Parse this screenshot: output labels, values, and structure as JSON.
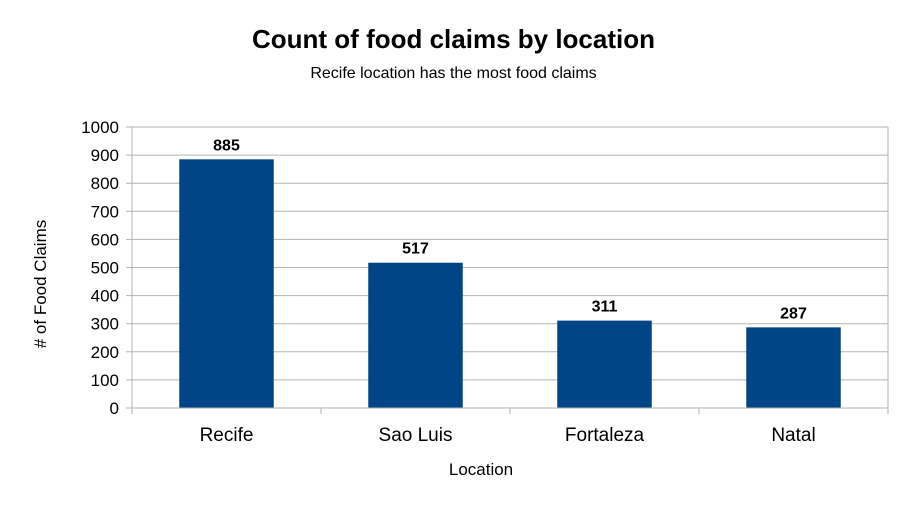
{
  "chart_data": {
    "type": "bar",
    "title": "Count of food claims by location",
    "subtitle": "Recife location has the most food claims",
    "xlabel": "Location",
    "ylabel": "# of Food Claims",
    "categories": [
      "Recife",
      "Sao Luis",
      "Fortaleza",
      "Natal"
    ],
    "values": [
      885,
      517,
      311,
      287
    ],
    "data_labels": [
      "885",
      "517",
      "311",
      "287"
    ],
    "ylim": [
      0,
      1000
    ],
    "yticks": [
      "0",
      "100",
      "200",
      "300",
      "400",
      "500",
      "600",
      "700",
      "800",
      "900",
      "1000"
    ],
    "grid": true,
    "legend": "none",
    "bar_color": "#004586"
  }
}
